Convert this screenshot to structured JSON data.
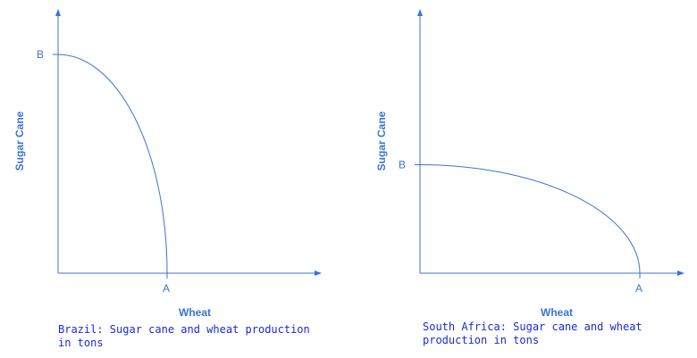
{
  "chart_data": [
    {
      "type": "line",
      "xlabel": "Wheat",
      "ylabel": "Sugar Cane",
      "x_point_label": "A",
      "y_point_label": "B",
      "caption": "Brazil: Sugar cane and wheat production in tons",
      "curve": {
        "x_intercept": 1,
        "y_intercept": 1
      },
      "grid": false,
      "color": "#3a73d6"
    },
    {
      "type": "line",
      "xlabel": "Wheat",
      "ylabel": "Sugar Cane",
      "x_point_label": "A",
      "y_point_label": "B",
      "caption": "South Africa: Sugar cane and wheat production in tons",
      "curve": {
        "x_intercept": 2,
        "y_intercept": 0.5
      },
      "grid": false,
      "color": "#3a73d6"
    }
  ]
}
